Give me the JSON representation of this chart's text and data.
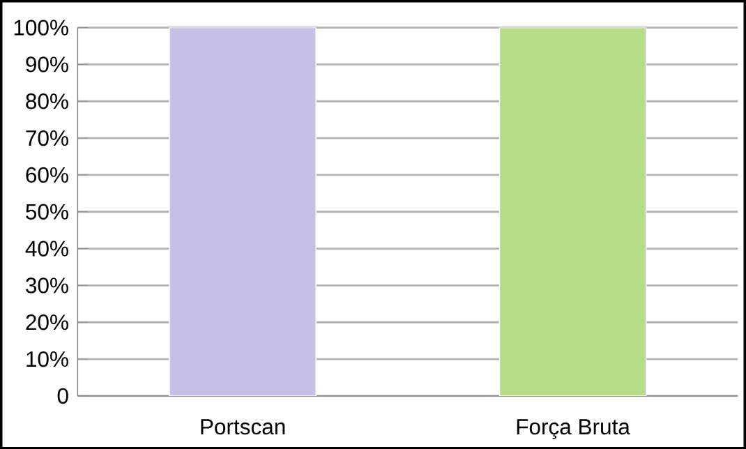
{
  "chart_data": {
    "type": "bar",
    "categories": [
      "Portscan",
      "Força Bruta"
    ],
    "values": [
      100,
      100
    ],
    "colors": [
      "#c6bfe6",
      "#b5dd88"
    ],
    "ylim": [
      0,
      100
    ],
    "yticks": [
      {
        "value": 0,
        "label": "0"
      },
      {
        "value": 10,
        "label": "10%"
      },
      {
        "value": 20,
        "label": "20%"
      },
      {
        "value": 30,
        "label": "30%"
      },
      {
        "value": 40,
        "label": "40%"
      },
      {
        "value": 50,
        "label": "50%"
      },
      {
        "value": 60,
        "label": "60%"
      },
      {
        "value": 70,
        "label": "70%"
      },
      {
        "value": 80,
        "label": "80%"
      },
      {
        "value": 90,
        "label": "90%"
      },
      {
        "value": 100,
        "label": "100%"
      }
    ],
    "grid": "y"
  }
}
